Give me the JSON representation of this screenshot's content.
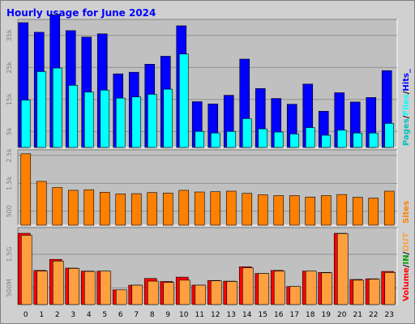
{
  "title": "Hourly usage for June 2024",
  "colors": {
    "title": "#0000ff",
    "hits": "#0000ff",
    "files": "#00ffff",
    "pages": "#00c0c0",
    "sites": "#ff8000",
    "volume_in": "#ff0000",
    "volume_out": "#ffa040",
    "plot_bg": "#c0c0c0",
    "frame_bg": "#d0d0d0"
  },
  "chart_data": [
    {
      "type": "bar",
      "categories": [
        "0",
        "1",
        "2",
        "3",
        "4",
        "5",
        "6",
        "7",
        "8",
        "9",
        "10",
        "11",
        "12",
        "13",
        "14",
        "15",
        "16",
        "17",
        "18",
        "19",
        "20",
        "21",
        "22",
        "23"
      ],
      "ylim": [
        0,
        40000
      ],
      "tick_labels": [
        {
          "value": 5000,
          "label": "5k"
        },
        {
          "value": 15000,
          "label": "15k"
        },
        {
          "value": 25000,
          "label": "25k"
        },
        {
          "value": 35000,
          "label": "35k"
        }
      ],
      "legend": [
        {
          "key": "pages",
          "label": "Pages"
        },
        {
          "key": "sep1",
          "label": "/"
        },
        {
          "key": "files",
          "label": "Files"
        },
        {
          "key": "sep2",
          "label": "/"
        },
        {
          "key": "hits",
          "label": "Hits_"
        }
      ],
      "series": [
        {
          "key": "hits",
          "values": [
            39000,
            36000,
            41500,
            36500,
            34500,
            35500,
            23000,
            23500,
            26000,
            28500,
            38000,
            14300,
            13600,
            16300,
            27600,
            18400,
            15300,
            13500,
            19800,
            11300,
            17100,
            14200,
            15600,
            24000
          ]
        },
        {
          "key": "files",
          "values": [
            14800,
            23700,
            24800,
            19400,
            17300,
            17900,
            15400,
            15800,
            16600,
            18200,
            29200,
            5000,
            4500,
            5000,
            9000,
            5800,
            4800,
            4200,
            6200,
            3800,
            5400,
            4500,
            4500,
            7500
          ]
        }
      ]
    },
    {
      "type": "bar",
      "categories": [
        "0",
        "1",
        "2",
        "3",
        "4",
        "5",
        "6",
        "7",
        "8",
        "9",
        "10",
        "11",
        "12",
        "13",
        "14",
        "15",
        "16",
        "17",
        "18",
        "19",
        "20",
        "21",
        "22",
        "23"
      ],
      "ylim": [
        0,
        2700
      ],
      "tick_labels": [
        {
          "value": 500,
          "label": "500"
        },
        {
          "value": 1500,
          "label": "1.5k"
        },
        {
          "value": 2500,
          "label": "2.5k"
        }
      ],
      "legend": [
        {
          "key": "sites",
          "label": "Sites"
        }
      ],
      "series": [
        {
          "key": "sites",
          "values": [
            2560,
            1570,
            1350,
            1250,
            1270,
            1180,
            1120,
            1130,
            1170,
            1150,
            1250,
            1190,
            1200,
            1220,
            1140,
            1090,
            1060,
            1060,
            1010,
            1060,
            1100,
            1000,
            970,
            1220
          ]
        }
      ]
    },
    {
      "type": "bar",
      "categories": [
        "0",
        "1",
        "2",
        "3",
        "4",
        "5",
        "6",
        "7",
        "8",
        "9",
        "10",
        "11",
        "12",
        "13",
        "14",
        "15",
        "16",
        "17",
        "18",
        "19",
        "20",
        "21",
        "22",
        "23"
      ],
      "ylim": [
        0,
        2300000000
      ],
      "tick_labels": [
        {
          "value": 500000000,
          "label": "500M"
        },
        {
          "value": 1500000000,
          "label": "1.5G"
        }
      ],
      "legend": [
        {
          "key": "volume",
          "label": "Volume"
        },
        {
          "key": "sep1",
          "label": "/"
        },
        {
          "key": "in",
          "label": "IN"
        },
        {
          "key": "sep2",
          "label": "/"
        },
        {
          "key": "out",
          "label": "OUT"
        }
      ],
      "series": [
        {
          "key": "volume",
          "values": [
            2130000000,
            1020000000,
            1350000000,
            1090000000,
            1000000000,
            1000000000,
            440000000,
            580000000,
            780000000,
            690000000,
            820000000,
            580000000,
            720000000,
            700000000,
            1130000000,
            930000000,
            1020000000,
            540000000,
            1000000000,
            960000000,
            2130000000,
            750000000,
            770000000,
            990000000
          ]
        },
        {
          "key": "out",
          "values": [
            2070000000,
            1000000000,
            1300000000,
            1080000000,
            990000000,
            1000000000,
            440000000,
            580000000,
            700000000,
            660000000,
            730000000,
            580000000,
            710000000,
            690000000,
            1100000000,
            930000000,
            1000000000,
            540000000,
            1000000000,
            950000000,
            2120000000,
            730000000,
            760000000,
            960000000
          ]
        }
      ]
    }
  ]
}
